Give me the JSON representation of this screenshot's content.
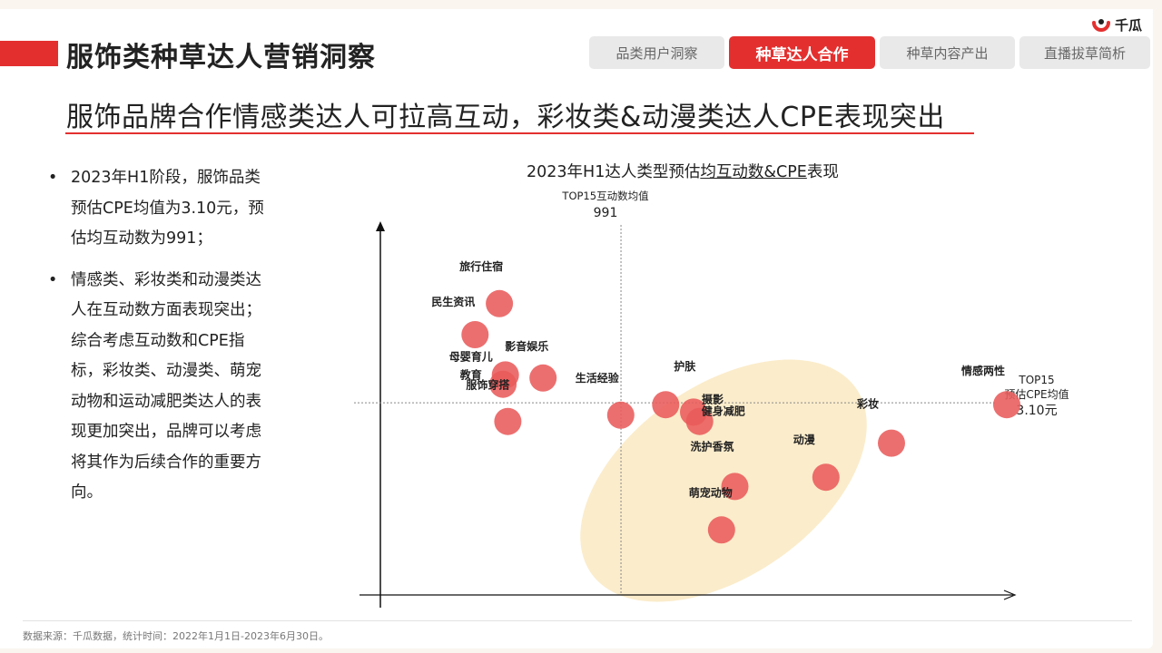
{
  "header": {
    "title": "服饰类种草达人营销洞察",
    "logo_text": "千瓜",
    "tabs": [
      {
        "label": "品类用户洞察",
        "active": false
      },
      {
        "label": "种草达人合作",
        "active": true
      },
      {
        "label": "种草内容产出",
        "active": false
      },
      {
        "label": "直播拔草简析",
        "active": false
      }
    ]
  },
  "headline": "服饰品牌合作情感类达人可拉高互动，彩妆类&动漫类达人CPE表现突出",
  "bullets": [
    {
      "symbol": "•",
      "text": "2023年H1阶段，服饰品类预估CPE均值为3.10元，预估均互动数为991；"
    },
    {
      "symbol": "•",
      "text": "情感类、彩妆类和动漫类达人在互动数方面表现突出；综合考虑互动数和CPE指标，彩妆类、动漫类、萌宠动物和运动减肥类达人的表现更加突出，品牌可以考虑将其作为后续合作的重要方向。"
    }
  ],
  "chart": {
    "title_prefix": "2023年H1达人类型预估",
    "title_underlined": "均互动数&CPE",
    "title_suffix": "表现",
    "vline_label": "TOP15互动数均值",
    "vline_value": "991",
    "hline_label_1": "TOP15",
    "hline_label_2": "预估CPE均值",
    "hline_value": "3.10元"
  },
  "colors": {
    "accent": "#e3302f",
    "point": "#e95b5b",
    "highlight": "#fbeccb"
  },
  "chart_data": {
    "type": "scatter",
    "title": "2023年H1达人类型预估均互动数&CPE表现",
    "x_reference": {
      "label": "TOP15互动数均值",
      "value": 991
    },
    "y_reference": {
      "label": "TOP15预估CPE均值",
      "value": 3.1,
      "unit": "元"
    },
    "x_range": [
      0,
      2550
    ],
    "y_range": [
      0,
      6.0
    ],
    "grid": false,
    "points": [
      {
        "name": "旅行住宿",
        "x": 490,
        "y": 4.7
      },
      {
        "name": "民生资讯",
        "x": 390,
        "y": 4.2
      },
      {
        "name": "影音娱乐",
        "x": 670,
        "y": 3.5
      },
      {
        "name": "母婴育儿教育",
        "x": 515,
        "y": 3.55
      },
      {
        "name": "母婴育儿教育",
        "x": 505,
        "y": 3.4
      },
      {
        "name": "服饰穿搭",
        "x": 525,
        "y": 2.8
      },
      {
        "name": "生活经验",
        "x": 990,
        "y": 2.9
      },
      {
        "name": "护肤",
        "x": 1175,
        "y": 3.07
      },
      {
        "name": "摄影",
        "x": 1290,
        "y": 2.95
      },
      {
        "name": "健身减肥",
        "x": 1315,
        "y": 2.8
      },
      {
        "name": "彩妆",
        "x": 2105,
        "y": 2.45
      },
      {
        "name": "动漫",
        "x": 1835,
        "y": 1.9
      },
      {
        "name": "洗护香氛",
        "x": 1460,
        "y": 1.75
      },
      {
        "name": "萌宠动物",
        "x": 1405,
        "y": 1.05
      },
      {
        "name": "情感两性",
        "x": 2580,
        "y": 3.07
      }
    ],
    "highlight_group": [
      "生活经验",
      "护肤",
      "摄影",
      "健身减肥",
      "彩妆",
      "动漫",
      "洗护香氛",
      "萌宠动物"
    ]
  },
  "footer": "数据来源：千瓜数据，统计时间：2022年1月1日-2023年6月30日。"
}
